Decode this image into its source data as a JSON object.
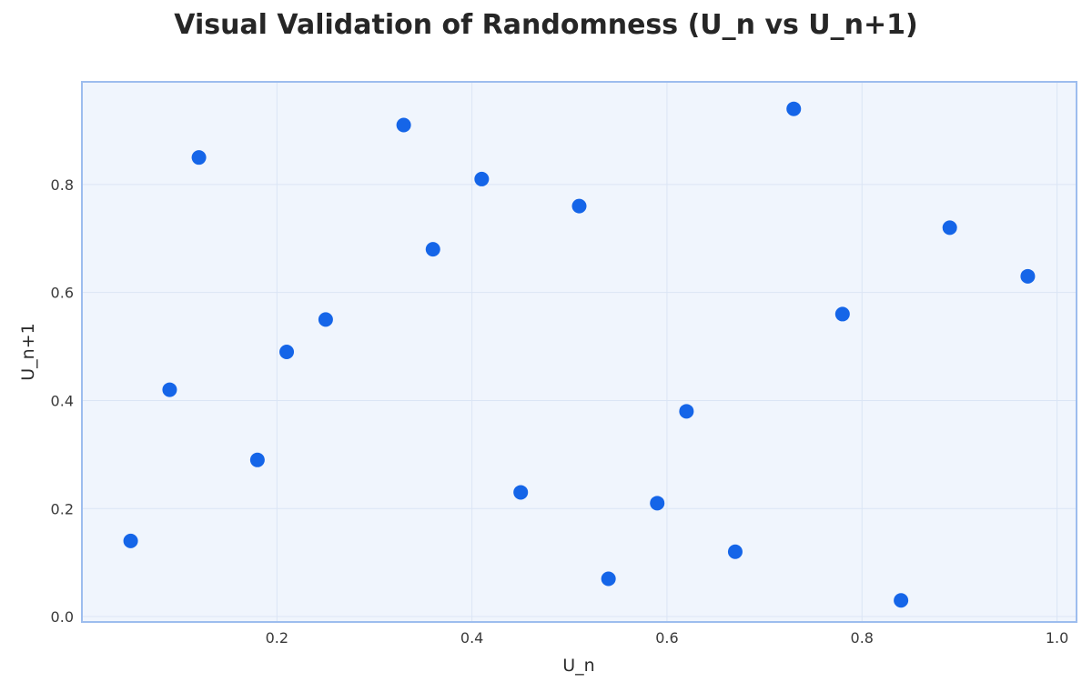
{
  "chart_data": {
    "type": "scatter",
    "title": "Visual Validation of Randomness (U_n vs U_n+1)",
    "xlabel": "U_n",
    "ylabel": "U_n+1",
    "xlim": [
      0.0,
      1.02
    ],
    "ylim": [
      -0.01,
      0.99
    ],
    "x_ticks": [
      0.2,
      0.4,
      0.6,
      0.8,
      1.0
    ],
    "x_tick_labels": [
      "0.2",
      "0.4",
      "0.6",
      "0.8",
      "1.0"
    ],
    "y_ticks": [
      0.0,
      0.2,
      0.4,
      0.6,
      0.8
    ],
    "y_tick_labels": [
      "0.0",
      "0.2",
      "0.4",
      "0.6",
      "0.8"
    ],
    "grid": true,
    "series": [
      {
        "x": [
          0.05,
          0.09,
          0.12,
          0.18,
          0.21,
          0.25,
          0.33,
          0.36,
          0.41,
          0.45,
          0.51,
          0.54,
          0.59,
          0.62,
          0.67,
          0.73,
          0.78,
          0.84,
          0.89,
          0.97
        ],
        "y": [
          0.14,
          0.42,
          0.85,
          0.29,
          0.49,
          0.55,
          0.91,
          0.68,
          0.81,
          0.23,
          0.76,
          0.07,
          0.21,
          0.38,
          0.12,
          0.94,
          0.56,
          0.03,
          0.72,
          0.63
        ]
      }
    ],
    "colors": {
      "point": "#1565e8",
      "plot_background": "#f0f5fd",
      "plot_border": "#9dbdee",
      "grid": "#dbe5f5"
    }
  }
}
